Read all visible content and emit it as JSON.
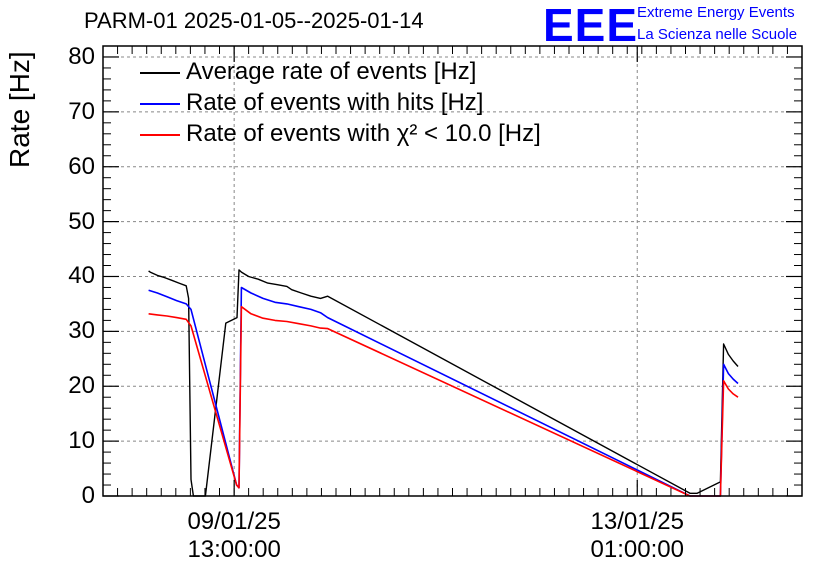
{
  "header": {
    "title": "PARM-01 2025-01-05--2025-01-14",
    "logo_text": "EEE",
    "logo_line1": "Extreme Energy Events",
    "logo_line2": "La Scienza nelle Scuole",
    "logo_color": "#0000ff"
  },
  "chart_data": {
    "type": "line",
    "title": "PARM-01 2025-01-05--2025-01-14",
    "ylabel": "Rate [Hz]",
    "xlabel": "",
    "ylim": [
      0,
      82
    ],
    "yticks": [
      0,
      10,
      20,
      30,
      40,
      50,
      60,
      70,
      80
    ],
    "xlim": [
      "2025-01-08T09:40",
      "2025-01-14T11:20"
    ],
    "xticks": [
      {
        "x": "2025-01-09T13:00",
        "label1": "09/01/25",
        "label2": "13:00:00"
      },
      {
        "x": "2025-01-13T01:00",
        "label1": "13/01/25",
        "label2": "01:00:00"
      }
    ],
    "grid": true,
    "legend": "top-left",
    "series": [
      {
        "name": "Average rate of events [Hz]",
        "color": "#000000",
        "x": [
          "2025-01-08T19:10",
          "2025-01-08T19:30",
          "2025-01-08T21:00",
          "2025-01-08T22:30",
          "2025-01-09T00:00",
          "2025-01-09T01:30",
          "2025-01-09T03:00",
          "2025-01-09T03:30",
          "2025-01-09T04:00",
          "2025-01-09T04:30",
          "2025-01-09T06:30",
          "2025-01-09T07:00",
          "2025-01-09T11:15",
          "2025-01-09T13:35",
          "2025-01-09T14:00",
          "2025-01-09T14:30",
          "2025-01-09T16:00",
          "2025-01-09T18:00",
          "2025-01-09T20:00",
          "2025-01-09T22:00",
          "2025-01-10T00:00",
          "2025-01-10T01:00",
          "2025-01-10T03:00",
          "2025-01-10T05:00",
          "2025-01-10T07:00",
          "2025-01-10T08:30",
          "2025-01-13T12:00",
          "2025-01-13T13:30",
          "2025-01-13T18:10",
          "2025-01-13T18:20",
          "2025-01-13T19:00",
          "2025-01-13T20:00",
          "2025-01-13T21:00",
          "2025-01-13T22:00"
        ],
        "y": [
          41,
          40.8,
          40.2,
          39.8,
          39.3,
          38.8,
          38.3,
          36,
          3,
          0,
          0,
          0,
          31.5,
          32.5,
          41.2,
          40.8,
          40,
          39.5,
          38.8,
          38.5,
          38.2,
          37.6,
          37,
          36.4,
          36,
          36.4,
          0.5,
          0.5,
          2.5,
          2.5,
          27.7,
          25.8,
          24.6,
          23.6
        ]
      },
      {
        "name": "Rate of events with hits [Hz]",
        "color": "#0000ff",
        "x": [
          "2025-01-08T19:10",
          "2025-01-08T21:00",
          "2025-01-08T23:00",
          "2025-01-09T01:00",
          "2025-01-09T03:00",
          "2025-01-09T04:00",
          "2025-01-09T13:30",
          "2025-01-09T14:00",
          "2025-01-09T14:30",
          "2025-01-09T16:30",
          "2025-01-09T19:00",
          "2025-01-09T21:30",
          "2025-01-10T00:00",
          "2025-01-10T02:30",
          "2025-01-10T05:00",
          "2025-01-10T07:00",
          "2025-01-10T08:30",
          "2025-01-13T12:00",
          "2025-01-13T13:30",
          "2025-01-13T17:30",
          "2025-01-13T18:20",
          "2025-01-13T19:00",
          "2025-01-13T20:00",
          "2025-01-13T21:00",
          "2025-01-13T22:00"
        ],
        "y": [
          37.5,
          37,
          36.3,
          35.6,
          35,
          34,
          2,
          1.5,
          38,
          37,
          36,
          35.3,
          35,
          34.5,
          34,
          33.4,
          32.5,
          0,
          0,
          0,
          0,
          24,
          22.3,
          21.3,
          20.5
        ]
      },
      {
        "name": "Rate of events with χ² < 10.0 [Hz]",
        "color": "#ff0000",
        "x": [
          "2025-01-08T19:10",
          "2025-01-08T21:00",
          "2025-01-08T23:00",
          "2025-01-09T01:00",
          "2025-01-09T03:00",
          "2025-01-09T04:00",
          "2025-01-09T13:30",
          "2025-01-09T14:00",
          "2025-01-09T14:30",
          "2025-01-09T16:30",
          "2025-01-09T19:00",
          "2025-01-09T21:30",
          "2025-01-10T00:00",
          "2025-01-10T02:30",
          "2025-01-10T05:00",
          "2025-01-10T07:00",
          "2025-01-10T08:30",
          "2025-01-13T12:00",
          "2025-01-13T13:30",
          "2025-01-13T17:30",
          "2025-01-13T18:20",
          "2025-01-13T19:00",
          "2025-01-13T20:00",
          "2025-01-13T21:00",
          "2025-01-13T22:00"
        ],
        "y": [
          33.2,
          33,
          32.8,
          32.5,
          32.2,
          31,
          2,
          1.5,
          34.5,
          33.2,
          32.4,
          32,
          31.8,
          31.4,
          31,
          30.6,
          30.5,
          0,
          0,
          0,
          0,
          21,
          19.5,
          18.6,
          18
        ]
      }
    ]
  }
}
